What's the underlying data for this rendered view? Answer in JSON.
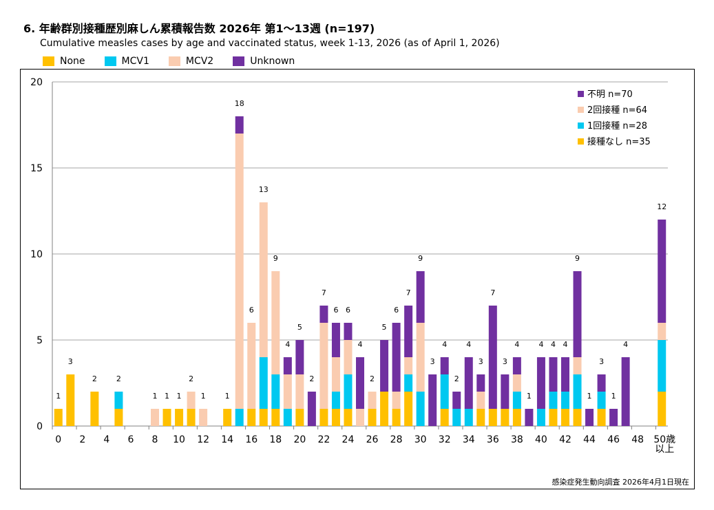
{
  "title": "6. 年齢群別接種歴別麻しん累積報告数  2026年 第1～13週 (n=197)",
  "subtitle": "Cumulative measles cases by age and vaccinated status, week 1-13, 2026 (as of April 1, 2026)",
  "legend_top": [
    {
      "label": "None",
      "color": "#FFC000"
    },
    {
      "label": "MCV1",
      "color": "#00C8F0"
    },
    {
      "label": "MCV2",
      "color": "#FACCB0"
    },
    {
      "label": "Unknown",
      "color": "#7030A0"
    }
  ],
  "source": "感染症発生動向調査 2026年4月1日現在",
  "chart_data": {
    "type": "bar",
    "stacked": true,
    "categories": [
      "0",
      "1",
      "2",
      "3",
      "4",
      "5",
      "6",
      "7",
      "8",
      "9",
      "10",
      "11",
      "12",
      "13",
      "14",
      "15",
      "16",
      "17",
      "18",
      "19",
      "20",
      "21",
      "22",
      "23",
      "24",
      "25",
      "26",
      "27",
      "28",
      "29",
      "30",
      "31",
      "32",
      "33",
      "34",
      "35",
      "36",
      "37",
      "38",
      "39",
      "40",
      "41",
      "42",
      "43",
      "44",
      "45",
      "46",
      "47",
      "48",
      "49",
      "50歳以上"
    ],
    "x_tick_labels": [
      "0",
      "2",
      "4",
      "6",
      "8",
      "10",
      "12",
      "14",
      "16",
      "18",
      "20",
      "22",
      "24",
      "26",
      "28",
      "30",
      "32",
      "34",
      "36",
      "38",
      "40",
      "42",
      "44",
      "46",
      "48"
    ],
    "last_tick_label": [
      "50歳",
      "以上"
    ],
    "ylim": [
      0,
      20
    ],
    "yticks": [
      0,
      5,
      10,
      15,
      20
    ],
    "grid": true,
    "legend_position": "top-right",
    "series": [
      {
        "name": "None",
        "legend_label": "接種なし n=35",
        "color": "#FFC000",
        "values": [
          1,
          3,
          0,
          2,
          0,
          1,
          0,
          0,
          0,
          1,
          1,
          1,
          0,
          0,
          1,
          0,
          1,
          1,
          1,
          0,
          1,
          0,
          1,
          1,
          1,
          0,
          1,
          2,
          1,
          2,
          0,
          0,
          1,
          0,
          0,
          1,
          1,
          1,
          1,
          0,
          0,
          1,
          1,
          1,
          0,
          1,
          0,
          0,
          0,
          0,
          2
        ]
      },
      {
        "name": "MCV1",
        "legend_label": "1回接種 n=28",
        "color": "#00C8F0",
        "values": [
          0,
          0,
          0,
          0,
          0,
          1,
          0,
          0,
          0,
          0,
          0,
          0,
          0,
          0,
          0,
          1,
          0,
          3,
          2,
          1,
          0,
          0,
          0,
          1,
          2,
          0,
          0,
          0,
          0,
          1,
          2,
          0,
          2,
          1,
          1,
          0,
          0,
          0,
          1,
          0,
          1,
          1,
          1,
          2,
          0,
          1,
          0,
          0,
          0,
          0,
          3
        ]
      },
      {
        "name": "MCV2",
        "legend_label": "2回接種 n=64",
        "color": "#FACCB0",
        "values": [
          0,
          0,
          0,
          0,
          0,
          0,
          0,
          0,
          1,
          0,
          0,
          1,
          1,
          0,
          0,
          16,
          5,
          9,
          6,
          2,
          2,
          0,
          5,
          2,
          2,
          1,
          1,
          0,
          1,
          1,
          4,
          0,
          0,
          0,
          0,
          1,
          0,
          0,
          1,
          0,
          0,
          0,
          0,
          1,
          0,
          0,
          0,
          0,
          0,
          0,
          1
        ]
      },
      {
        "name": "Unknown",
        "legend_label": "不明 n=70",
        "color": "#7030A0",
        "values": [
          0,
          0,
          0,
          0,
          0,
          0,
          0,
          0,
          0,
          0,
          0,
          0,
          0,
          0,
          0,
          1,
          0,
          0,
          0,
          1,
          2,
          2,
          1,
          2,
          1,
          3,
          0,
          3,
          4,
          3,
          3,
          3,
          1,
          1,
          3,
          1,
          6,
          2,
          1,
          1,
          3,
          2,
          2,
          5,
          1,
          1,
          1,
          4,
          0,
          0,
          6
        ]
      }
    ],
    "totals": [
      1,
      3,
      0,
      2,
      0,
      2,
      0,
      0,
      1,
      1,
      1,
      2,
      1,
      0,
      1,
      18,
      6,
      13,
      9,
      4,
      5,
      2,
      7,
      6,
      6,
      4,
      2,
      5,
      6,
      7,
      9,
      3,
      4,
      2,
      4,
      3,
      7,
      3,
      4,
      1,
      4,
      4,
      4,
      9,
      1,
      3,
      1,
      4,
      0,
      0,
      12
    ]
  }
}
